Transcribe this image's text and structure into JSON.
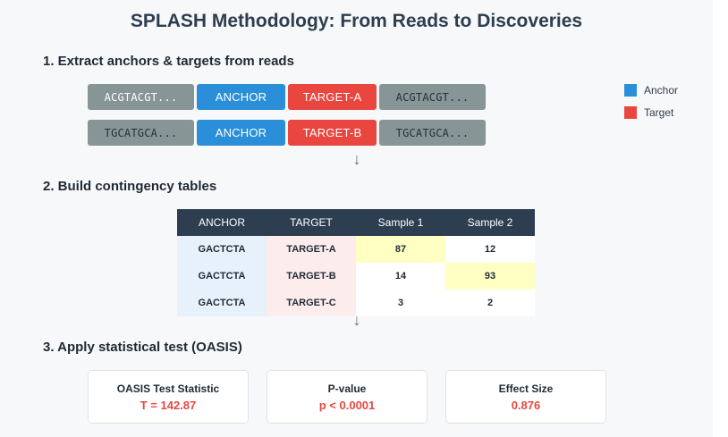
{
  "title": "SPLASH Methodology: From Reads to Discoveries",
  "steps": {
    "s1": "1. Extract anchors & targets from reads",
    "s2": "2. Build contingency tables",
    "s3": "3. Apply statistical test (OASIS)"
  },
  "reads": [
    {
      "left": "ACGTACGT...",
      "anchor": "ANCHOR",
      "target": "TARGET-A",
      "right": "ACGTACGT..."
    },
    {
      "left": "TGCATGCA...",
      "anchor": "ANCHOR",
      "target": "TARGET-B",
      "right": "TGCATGCA..."
    }
  ],
  "legend": [
    {
      "label": "Anchor",
      "color": "#2a8fd8"
    },
    {
      "label": "Target",
      "color": "#e9463f"
    }
  ],
  "table": {
    "headers": [
      "ANCHOR",
      "TARGET",
      "Sample 1",
      "Sample 2"
    ],
    "rows": [
      {
        "anchor": "GACTCTA",
        "target": "TARGET-A",
        "s1": "87",
        "s2": "12"
      },
      {
        "anchor": "GACTCTA",
        "target": "TARGET-B",
        "s1": "14",
        "s2": "93"
      },
      {
        "anchor": "GACTCTA",
        "target": "TARGET-C",
        "s1": "3",
        "s2": "2"
      }
    ]
  },
  "results": [
    {
      "label": "OASIS Test Statistic",
      "value": "T = 142.87"
    },
    {
      "label": "P-value",
      "value": "p < 0.0001"
    },
    {
      "label": "Effect Size",
      "value": "0.876"
    }
  ],
  "arrow_glyph": "↓"
}
